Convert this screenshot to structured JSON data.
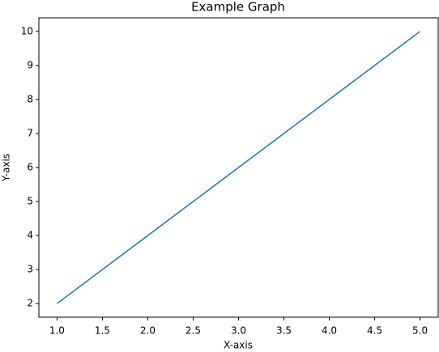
{
  "chart_data": {
    "type": "line",
    "title": "Example Graph",
    "x_label": "X-axis",
    "y_label": "Y-axis",
    "x": [
      1,
      2,
      3,
      4,
      5
    ],
    "series": [
      {
        "color": "#1f77b4",
        "values": [
          2,
          4,
          6,
          8,
          10
        ]
      }
    ],
    "xlim": [
      0.8,
      5.2
    ],
    "xticks": [
      {
        "value": 1,
        "label": "1.0"
      },
      1.5,
      {
        "value": 2,
        "label": "2.0"
      },
      2.5,
      {
        "value": 3,
        "label": "3.0"
      },
      3.5,
      {
        "value": 4,
        "label": "4.0"
      },
      4.5,
      {
        "value": 5,
        "label": "5.0"
      }
    ],
    "ylim": [
      1.6,
      10.4
    ],
    "yticks": [
      2,
      3,
      4,
      5,
      6,
      7,
      8,
      9,
      10
    ],
    "grid": false
  }
}
